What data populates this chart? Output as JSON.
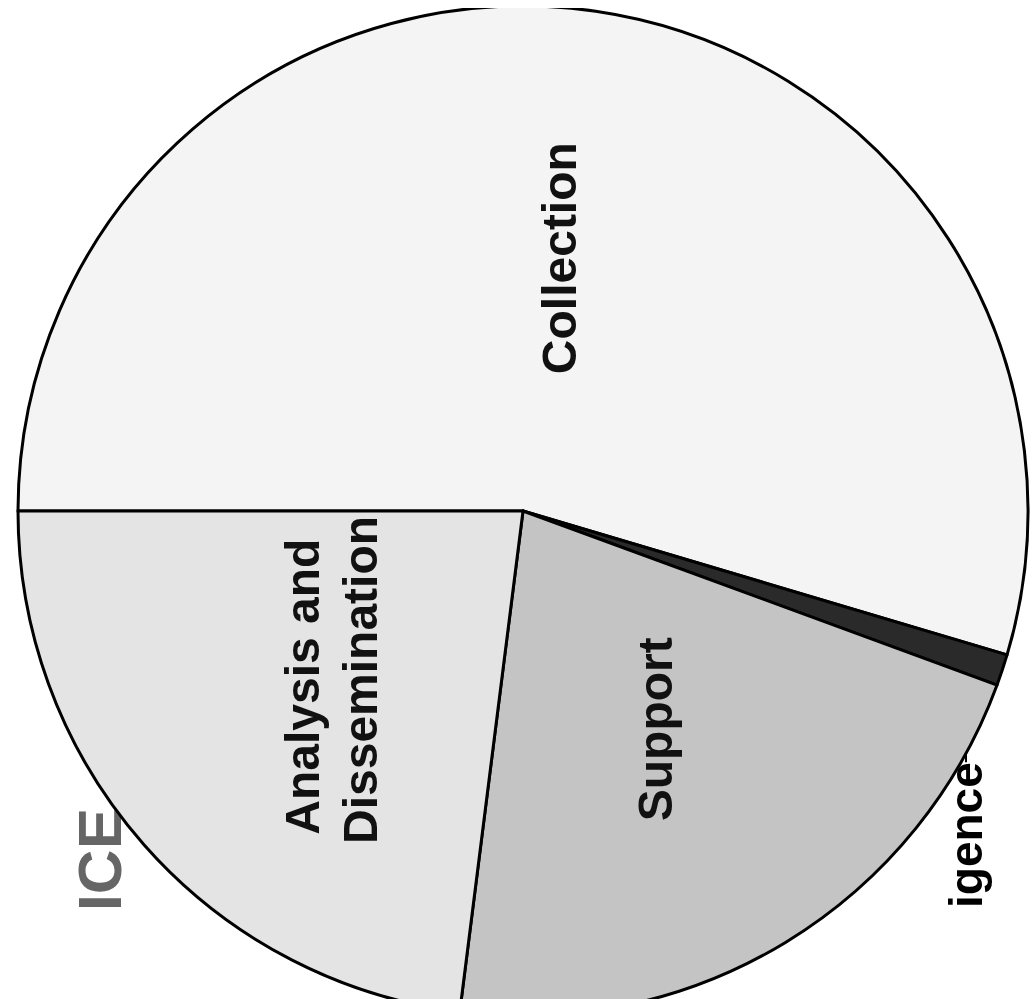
{
  "chart_data": {
    "type": "pie",
    "title": "ICE",
    "categories": [
      "Collection",
      "igence",
      "Support",
      "Analysis and Dissemination"
    ],
    "values": [
      54.6,
      1.0,
      21.4,
      23.0
    ],
    "colors": [
      "#f4f4f4",
      "#2a2a2a",
      "#c4c4c4",
      "#e4e4e4"
    ]
  }
}
